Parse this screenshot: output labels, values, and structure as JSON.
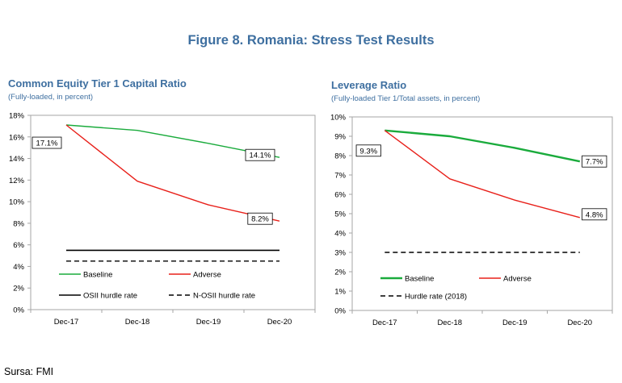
{
  "figure_title": "Figure 8. Romania: Stress Test Results",
  "source": "Sursa: FMI",
  "chart_data": [
    {
      "type": "line",
      "title": "Common Equity Tier 1 Capital Ratio",
      "subtitle": "(Fully-loaded, in percent)",
      "categories": [
        "Dec-17",
        "Dec-18",
        "Dec-19",
        "Dec-20"
      ],
      "ylim": [
        0,
        18
      ],
      "yticks": [
        0,
        2,
        4,
        6,
        8,
        10,
        12,
        14,
        16,
        18
      ],
      "ytick_labels": [
        "0%",
        "2%",
        "4%",
        "6%",
        "8%",
        "10%",
        "12%",
        "14%",
        "16%",
        "18%"
      ],
      "series": [
        {
          "name": "Baseline",
          "color": "#1aab3c",
          "values": [
            17.1,
            16.6,
            15.4,
            14.1
          ],
          "style": "solid"
        },
        {
          "name": "Adverse",
          "color": "#e8201a",
          "values": [
            17.1,
            11.9,
            9.7,
            8.2
          ],
          "style": "solid"
        },
        {
          "name": "OSII hurdle rate",
          "color": "#000000",
          "values": [
            5.5,
            5.5,
            5.5,
            5.5
          ],
          "style": "solid"
        },
        {
          "name": "N-OSII hurdle rate",
          "color": "#000000",
          "values": [
            4.5,
            4.5,
            4.5,
            4.5
          ],
          "style": "dashed"
        }
      ],
      "data_labels": [
        {
          "text": "17.1%",
          "category": "Dec-17",
          "value": 17.1,
          "placement": "below-left"
        },
        {
          "text": "14.1%",
          "category": "Dec-20",
          "value": 14.1,
          "placement": "above"
        },
        {
          "text": "8.2%",
          "category": "Dec-20",
          "value": 8.2,
          "placement": "above"
        }
      ],
      "legend_placement": "bottom-inside",
      "grid": false
    },
    {
      "type": "line",
      "title": "Leverage Ratio",
      "subtitle": "(Fully-loaded Tier 1/Total assets, in percent)",
      "categories": [
        "Dec-17",
        "Dec-18",
        "Dec-19",
        "Dec-20"
      ],
      "ylim": [
        0,
        10
      ],
      "yticks": [
        0,
        1,
        2,
        3,
        4,
        5,
        6,
        7,
        8,
        9,
        10
      ],
      "ytick_labels": [
        "0%",
        "1%",
        "2%",
        "3%",
        "4%",
        "5%",
        "6%",
        "7%",
        "8%",
        "9%",
        "10%"
      ],
      "series": [
        {
          "name": "Baseline",
          "color": "#1aab3c",
          "values": [
            9.3,
            9.0,
            8.4,
            7.7
          ],
          "style": "solid"
        },
        {
          "name": "Adverse",
          "color": "#e8201a",
          "values": [
            9.3,
            6.8,
            5.7,
            4.8
          ],
          "style": "solid"
        },
        {
          "name": "Hurdle rate (2018)",
          "color": "#000000",
          "values": [
            3.0,
            3.0,
            3.0,
            3.0
          ],
          "style": "dashed"
        }
      ],
      "data_labels": [
        {
          "text": "9.3%",
          "category": "Dec-17",
          "value": 9.3,
          "placement": "below"
        },
        {
          "text": "7.7%",
          "category": "Dec-20",
          "value": 7.7,
          "placement": "right"
        },
        {
          "text": "4.8%",
          "category": "Dec-20",
          "value": 4.8,
          "placement": "right"
        }
      ],
      "legend_placement": "bottom-inside",
      "grid": false
    }
  ]
}
